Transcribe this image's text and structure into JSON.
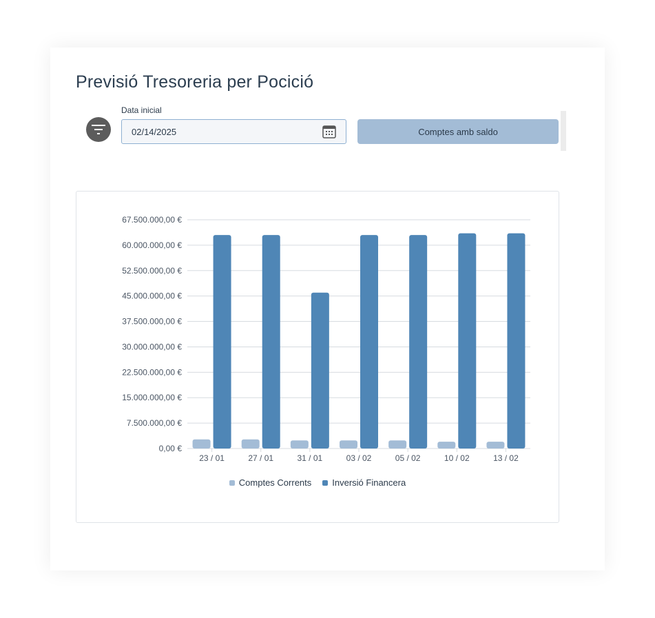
{
  "page": {
    "title": "Previsió Tresoreria per Pocició"
  },
  "filters": {
    "date_label": "Data inicial",
    "date_value": "02/14/2025",
    "accounts_button_label": "Comptes amb saldo"
  },
  "icons": {
    "filter": "filter-icon",
    "calendar": "calendar-icon"
  },
  "colors": {
    "primary_series": "#4f86b6",
    "secondary_series": "#a3bcd6",
    "button": "#a3bcd6",
    "filter_button": "#5c5c5c"
  },
  "chart_data": {
    "type": "bar",
    "categories": [
      "23 / 01",
      "27 / 01",
      "31 / 01",
      "03 / 02",
      "05 / 02",
      "10 / 02",
      "13 / 02"
    ],
    "series": [
      {
        "name": "Comptes Corrents",
        "color": "#a3bcd6",
        "values": [
          2700000,
          2700000,
          2400000,
          2400000,
          2400000,
          2000000,
          2000000
        ]
      },
      {
        "name": "Inversió Financera",
        "color": "#4f86b6",
        "values": [
          63000000,
          63000000,
          46000000,
          63000000,
          63000000,
          63500000,
          63500000
        ]
      }
    ],
    "ylim": [
      0,
      67500000
    ],
    "yticks": [
      "0,00 €",
      "7.500.000,00 €",
      "15.000.000,00 €",
      "22.500.000,00 €",
      "30.000.000,00 €",
      "37.500.000,00 €",
      "45.000.000,00 €",
      "52.500.000,00 €",
      "60.000.000,00 €",
      "67.500.000,00 €"
    ],
    "legend_position": "bottom",
    "grid": true
  }
}
